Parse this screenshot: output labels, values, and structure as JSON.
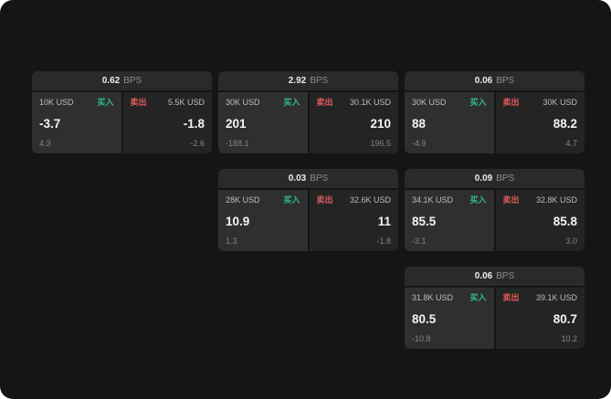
{
  "board": {
    "colors": {
      "buy_accent": "#2ebd85",
      "sell_accent": "#e25c5c",
      "background": "#151515"
    },
    "cards": [
      {
        "bps": "0.62",
        "bps_unit": "BPS",
        "buy": {
          "size": "10K USD",
          "label": "买入",
          "price": "-3.7",
          "delta": "4.3"
        },
        "sell": {
          "label": "卖出",
          "size": "5.5K USD",
          "price": "-1.8",
          "delta": "-2.6"
        }
      },
      {
        "bps": "2.92",
        "bps_unit": "BPS",
        "buy": {
          "size": "30K USD",
          "label": "买入",
          "price": "201",
          "delta": "-188.1"
        },
        "sell": {
          "label": "卖出",
          "size": "30.1K USD",
          "price": "210",
          "delta": "196.5"
        }
      },
      {
        "bps": "0.06",
        "bps_unit": "BPS",
        "buy": {
          "size": "30K USD",
          "label": "买入",
          "price": "88",
          "delta": "-4.9"
        },
        "sell": {
          "label": "卖出",
          "size": "30K USD",
          "price": "88.2",
          "delta": "4.7"
        }
      },
      {
        "bps": "0.03",
        "bps_unit": "BPS",
        "buy": {
          "size": "28K USD",
          "label": "买入",
          "price": "10.9",
          "delta": "1.3"
        },
        "sell": {
          "label": "卖出",
          "size": "32.6K USD",
          "price": "11",
          "delta": "-1.8"
        }
      },
      {
        "bps": "0.09",
        "bps_unit": "BPS",
        "buy": {
          "size": "34.1K USD",
          "label": "买入",
          "price": "85.5",
          "delta": "-3.1"
        },
        "sell": {
          "label": "卖出",
          "size": "32.8K USD",
          "price": "85.8",
          "delta": "3.0"
        }
      },
      {
        "bps": "0.06",
        "bps_unit": "BPS",
        "buy": {
          "size": "31.8K USD",
          "label": "买入",
          "price": "80.5",
          "delta": "-10.8"
        },
        "sell": {
          "label": "卖出",
          "size": "39.1K USD",
          "price": "80.7",
          "delta": "10.2"
        }
      }
    ]
  }
}
